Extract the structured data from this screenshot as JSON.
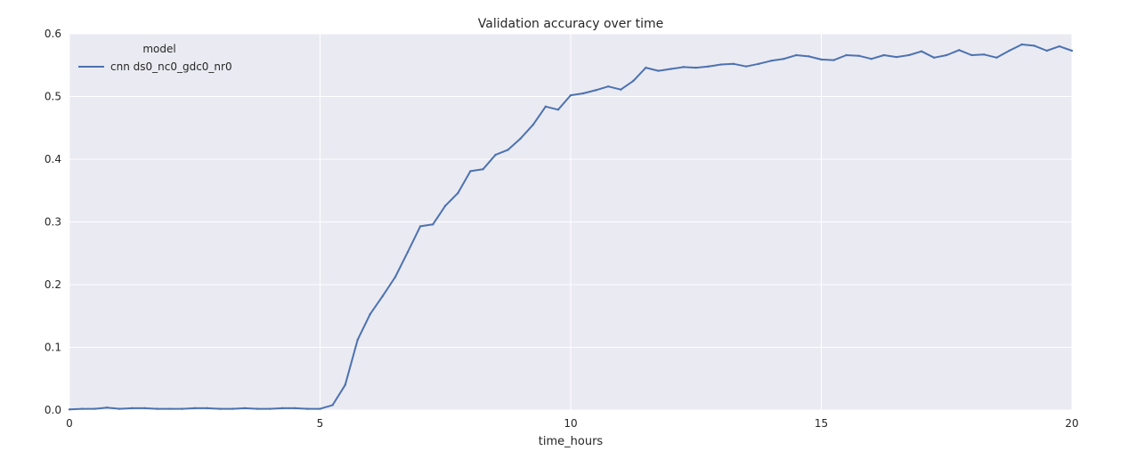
{
  "chart_data": {
    "type": "line",
    "title": "Validation accuracy over time",
    "xlabel": "time_hours",
    "ylabel": "",
    "xlim": [
      0,
      20
    ],
    "ylim": [
      0.0,
      0.6
    ],
    "x_ticks": [
      "0",
      "5",
      "10",
      "15",
      "20"
    ],
    "y_ticks": [
      "0.0",
      "0.1",
      "0.2",
      "0.3",
      "0.4",
      "0.5",
      "0.6"
    ],
    "grid": true,
    "legend": {
      "title": "model",
      "position": "top-left"
    },
    "series": [
      {
        "name": "cnn ds0_nc0_gdc0_nr0",
        "color": "#4c72b0",
        "x": [
          0,
          0.25,
          0.5,
          0.75,
          1.0,
          1.25,
          1.5,
          1.75,
          2.0,
          2.25,
          2.5,
          2.75,
          3.0,
          3.25,
          3.5,
          3.75,
          4.0,
          4.25,
          4.5,
          4.75,
          5.0,
          5.25,
          5.5,
          5.75,
          6.0,
          6.25,
          6.5,
          6.75,
          7.0,
          7.25,
          7.5,
          7.75,
          8.0,
          8.25,
          8.5,
          8.75,
          9.0,
          9.25,
          9.5,
          9.75,
          10.0,
          10.25,
          10.5,
          10.75,
          11.0,
          11.25,
          11.5,
          11.75,
          12.0,
          12.25,
          12.5,
          12.75,
          13.0,
          13.25,
          13.5,
          13.75,
          14.0,
          14.25,
          14.5,
          14.75,
          15.0,
          15.25,
          15.5,
          15.75,
          16.0,
          16.25,
          16.5,
          16.75,
          17.0,
          17.25,
          17.5,
          17.75,
          18.0,
          18.25,
          18.5,
          18.75,
          19.0,
          19.25,
          19.5,
          19.75,
          20.0
        ],
        "y": [
          0.001,
          0.002,
          0.002,
          0.004,
          0.002,
          0.003,
          0.003,
          0.002,
          0.002,
          0.002,
          0.003,
          0.003,
          0.002,
          0.002,
          0.003,
          0.002,
          0.002,
          0.003,
          0.003,
          0.002,
          0.002,
          0.008,
          0.04,
          0.112,
          0.153,
          0.182,
          0.212,
          0.252,
          0.293,
          0.296,
          0.326,
          0.346,
          0.381,
          0.384,
          0.407,
          0.415,
          0.433,
          0.455,
          0.484,
          0.479,
          0.502,
          0.505,
          0.51,
          0.516,
          0.511,
          0.525,
          0.546,
          0.541,
          0.544,
          0.547,
          0.546,
          0.548,
          0.551,
          0.552,
          0.548,
          0.552,
          0.557,
          0.56,
          0.566,
          0.564,
          0.559,
          0.558,
          0.566,
          0.565,
          0.56,
          0.566,
          0.563,
          0.566,
          0.572,
          0.562,
          0.566,
          0.574,
          0.566,
          0.567,
          0.562,
          0.573,
          0.583,
          0.581,
          0.573,
          0.58,
          0.573
        ]
      }
    ]
  }
}
